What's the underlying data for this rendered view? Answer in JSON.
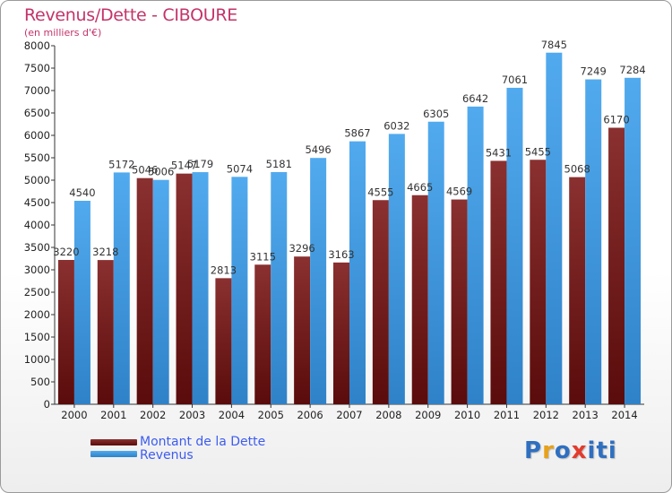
{
  "title": "Revenus/Dette - CIBOURE",
  "subtitle": "(en milliers d'€)",
  "logo": {
    "text": "Proxiti",
    "colors": [
      "#2f6fc0",
      "#e7a11a",
      "#2f6fc0",
      "#e23c2c",
      "#2f6fc0",
      "#2f6fc0",
      "#2f6fc0"
    ]
  },
  "colors": {
    "title": "#c4336a",
    "legend_text": "#3c5cf0",
    "dette": "#7a1f1f",
    "revenus": "#46a0e6"
  },
  "chart_data": {
    "type": "bar",
    "categories": [
      "2000",
      "2001",
      "2002",
      "2003",
      "2004",
      "2005",
      "2006",
      "2007",
      "2008",
      "2009",
      "2010",
      "2011",
      "2012",
      "2013",
      "2014"
    ],
    "series": [
      {
        "name": "Montant de la Dette",
        "color": "#7a1f1f",
        "values": [
          3220,
          3218,
          5046,
          5147,
          2813,
          3115,
          3296,
          3163,
          4555,
          4665,
          4569,
          5431,
          5455,
          5068,
          6170
        ],
        "labels": [
          "3220",
          "3218",
          "5046",
          "5147",
          "2813",
          "3115",
          "3296",
          "3163",
          "4555",
          "4665",
          "4569",
          "5431",
          "5455",
          "5068",
          "6170"
        ]
      },
      {
        "name": "Revenus",
        "color": "#46a0e6",
        "values": [
          4540,
          5172,
          5006,
          5179,
          5074,
          5181,
          5496,
          5867,
          6032,
          6305,
          6642,
          7061,
          7845,
          7249,
          7284
        ],
        "labels": [
          "4540",
          "5172",
          "5006",
          "5179",
          "5074",
          "5181",
          "5496",
          "5867",
          "6032",
          "6305",
          "6642",
          "7061",
          "7845",
          "7249",
          "7284"
        ]
      }
    ],
    "yticks": [
      0,
      500,
      1000,
      1500,
      2000,
      2500,
      3000,
      3500,
      4000,
      4500,
      5000,
      5500,
      6000,
      6500,
      7000,
      7500,
      8000
    ],
    "ylim": [
      0,
      8000
    ],
    "grid": false,
    "legend": "bottom-left"
  }
}
